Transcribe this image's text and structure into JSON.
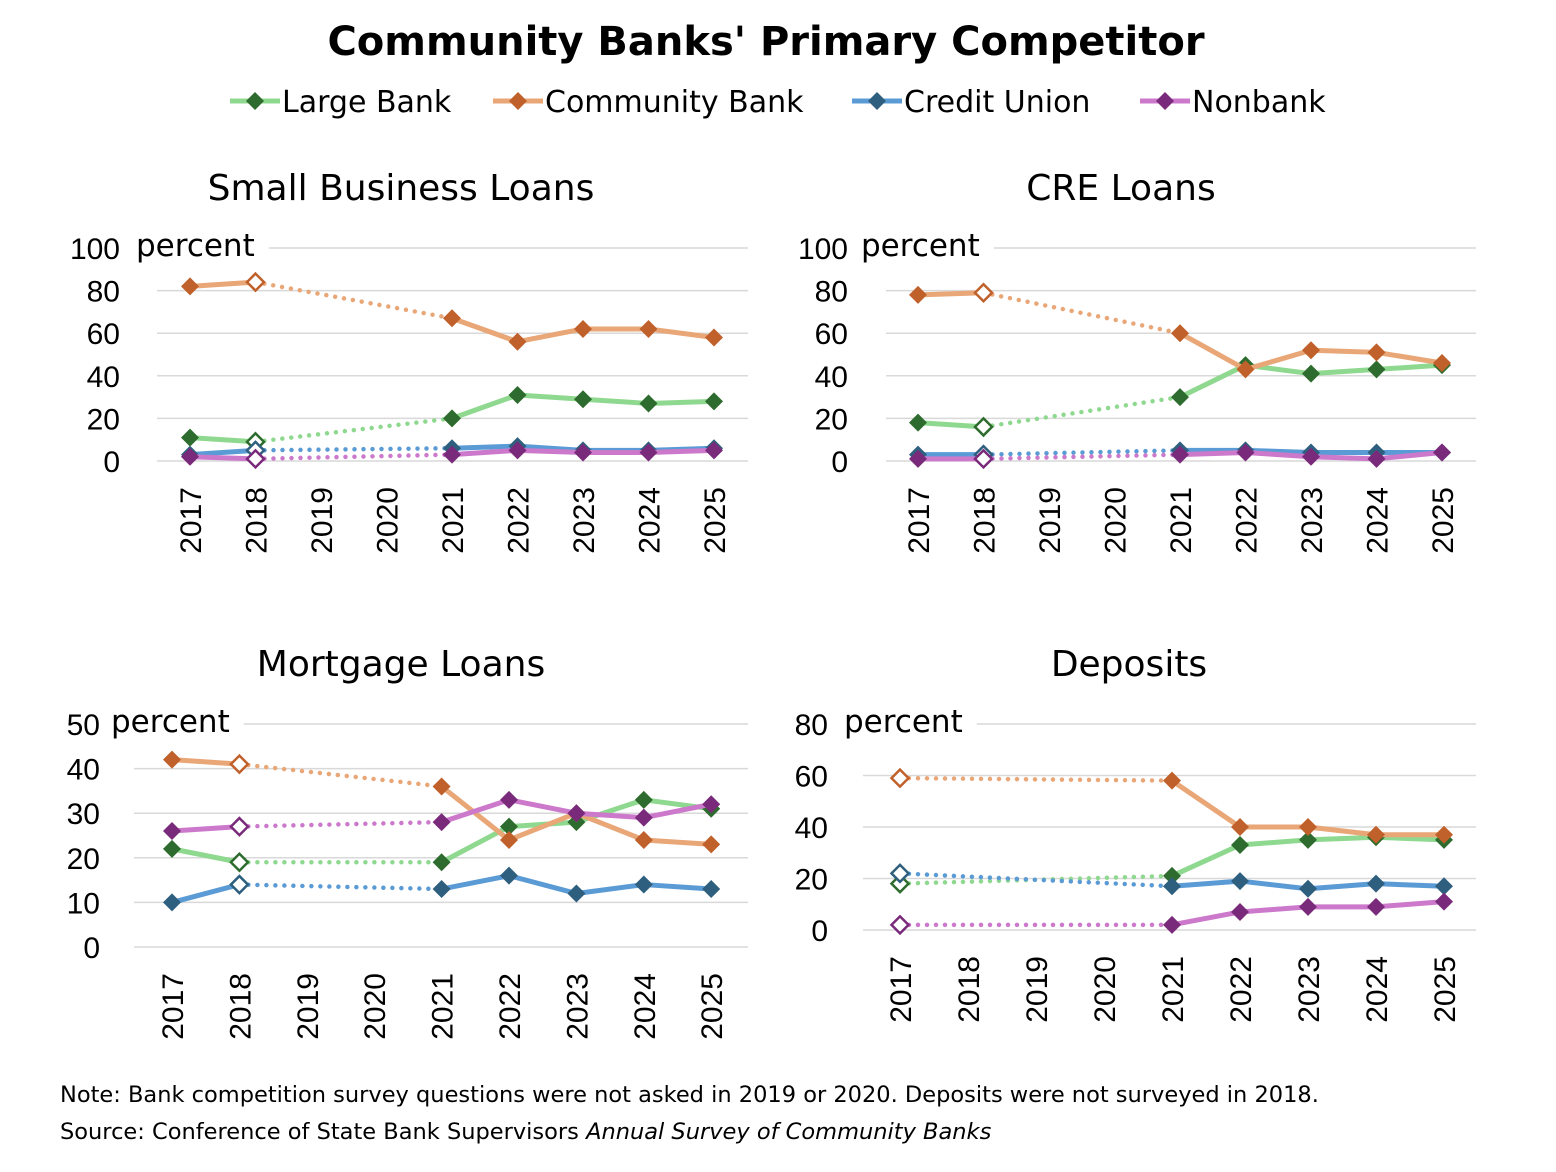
{
  "title": "Community Banks' Primary Competitor",
  "legend": [
    {
      "name": "Large Bank",
      "line_color": "#8FD88F",
      "marker_color": "#2E6B2E"
    },
    {
      "name": "Community Bank",
      "line_color": "#E9A676",
      "marker_color": "#C0602A"
    },
    {
      "name": "Credit Union",
      "line_color": "#5B9BD5",
      "marker_color": "#2F5F7E"
    },
    {
      "name": "Nonbank",
      "line_color": "#CC79CC",
      "marker_color": "#7A2A7A"
    }
  ],
  "note": "Note: Bank competition survey questions were not asked in 2019 or 2020. Deposits were not surveyed in 2018.",
  "source_prefix": "Source: Conference of State Bank Supervisors ",
  "source_italic": "Annual Survey of Community Banks",
  "chart_data": [
    {
      "type": "line",
      "title": "Small Business Loans",
      "ylabel": "percent",
      "x": [
        "2017",
        "2018",
        "2019",
        "2020",
        "2021",
        "2022",
        "2023",
        "2024",
        "2025"
      ],
      "ylim": [
        0,
        100
      ],
      "yticks": [
        0,
        20,
        40,
        60,
        80,
        100
      ],
      "grid": true,
      "series": [
        {
          "name": "Large Bank",
          "values": [
            11,
            9,
            null,
            null,
            20,
            31,
            29,
            27,
            28
          ]
        },
        {
          "name": "Community Bank",
          "values": [
            82,
            84,
            null,
            null,
            67,
            56,
            62,
            62,
            58
          ]
        },
        {
          "name": "Credit Union",
          "values": [
            3,
            5,
            null,
            null,
            6,
            7,
            5,
            5,
            6
          ]
        },
        {
          "name": "Nonbank",
          "values": [
            2,
            1,
            null,
            null,
            3,
            5,
            4,
            4,
            5
          ]
        }
      ]
    },
    {
      "type": "line",
      "title": "CRE Loans",
      "ylabel": "percent",
      "x": [
        "2017",
        "2018",
        "2019",
        "2020",
        "2021",
        "2022",
        "2023",
        "2024",
        "2025"
      ],
      "ylim": [
        0,
        100
      ],
      "yticks": [
        0,
        20,
        40,
        60,
        80,
        100
      ],
      "grid": true,
      "series": [
        {
          "name": "Large Bank",
          "values": [
            18,
            16,
            null,
            null,
            30,
            45,
            41,
            43,
            45
          ]
        },
        {
          "name": "Community Bank",
          "values": [
            78,
            79,
            null,
            null,
            60,
            43,
            52,
            51,
            46
          ]
        },
        {
          "name": "Credit Union",
          "values": [
            3,
            3,
            null,
            null,
            5,
            5,
            4,
            4,
            4
          ]
        },
        {
          "name": "Nonbank",
          "values": [
            1,
            1,
            null,
            null,
            3,
            4,
            2,
            1,
            4
          ]
        }
      ]
    },
    {
      "type": "line",
      "title": "Mortgage Loans",
      "ylabel": "percent",
      "x": [
        "2017",
        "2018",
        "2019",
        "2020",
        "2021",
        "2022",
        "2023",
        "2024",
        "2025"
      ],
      "ylim": [
        0,
        50
      ],
      "yticks": [
        0,
        10,
        20,
        30,
        40,
        50
      ],
      "grid": true,
      "series": [
        {
          "name": "Large Bank",
          "values": [
            22,
            19,
            null,
            null,
            19,
            27,
            28,
            33,
            31
          ]
        },
        {
          "name": "Community Bank",
          "values": [
            42,
            41,
            null,
            null,
            36,
            24,
            30,
            24,
            23
          ]
        },
        {
          "name": "Credit Union",
          "values": [
            10,
            14,
            null,
            null,
            13,
            16,
            12,
            14,
            13
          ]
        },
        {
          "name": "Nonbank",
          "values": [
            26,
            27,
            null,
            null,
            28,
            33,
            30,
            29,
            32
          ]
        }
      ]
    },
    {
      "type": "line",
      "title": "Deposits",
      "ylabel": "percent",
      "x": [
        "2017",
        "2018",
        "2019",
        "2020",
        "2021",
        "2022",
        "2023",
        "2024",
        "2025"
      ],
      "ylim": [
        0,
        80
      ],
      "yticks": [
        0,
        20,
        40,
        60,
        80
      ],
      "grid": true,
      "series": [
        {
          "name": "Large Bank",
          "values": [
            18,
            null,
            null,
            null,
            21,
            33,
            35,
            36,
            35
          ]
        },
        {
          "name": "Community Bank",
          "values": [
            59,
            null,
            null,
            null,
            58,
            40,
            40,
            37,
            37
          ]
        },
        {
          "name": "Credit Union",
          "values": [
            22,
            null,
            null,
            null,
            17,
            19,
            16,
            18,
            17
          ]
        },
        {
          "name": "Nonbank",
          "values": [
            2,
            null,
            null,
            null,
            2,
            7,
            9,
            9,
            11
          ]
        }
      ]
    }
  ]
}
